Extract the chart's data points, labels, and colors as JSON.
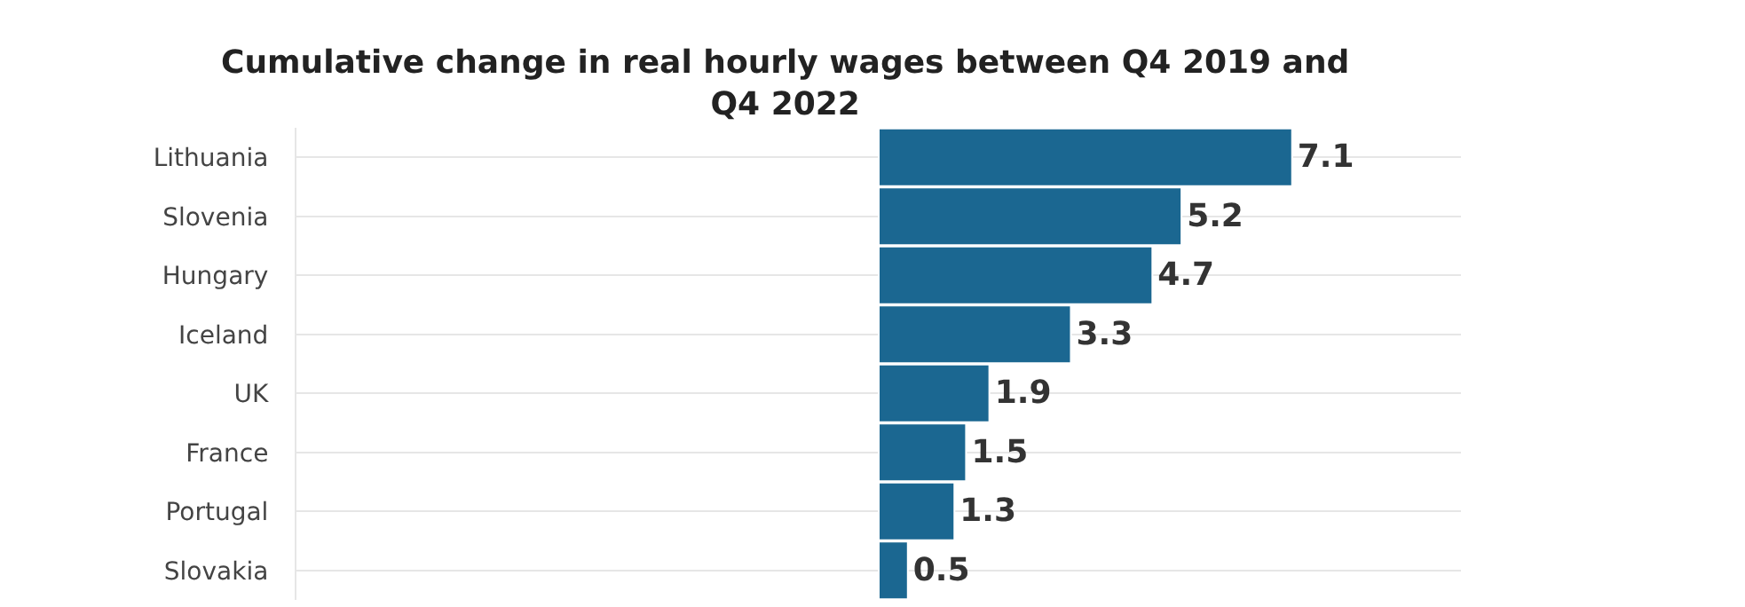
{
  "chart_data": {
    "type": "bar",
    "orientation": "horizontal",
    "title": "Cumulative change in real hourly wages between Q4 2019 and Q4 2022",
    "categories": [
      "Lithuania",
      "Slovenia",
      "Hungary",
      "Iceland",
      "UK",
      "France",
      "Portugal",
      "Slovakia"
    ],
    "values": [
      7.1,
      5.2,
      4.7,
      3.3,
      1.9,
      1.5,
      1.3,
      0.5
    ],
    "color": "#1b6791",
    "xlim": [
      -10,
      10
    ],
    "data_labels": true,
    "grid": "y",
    "legend": false,
    "tick_labels": "y"
  }
}
